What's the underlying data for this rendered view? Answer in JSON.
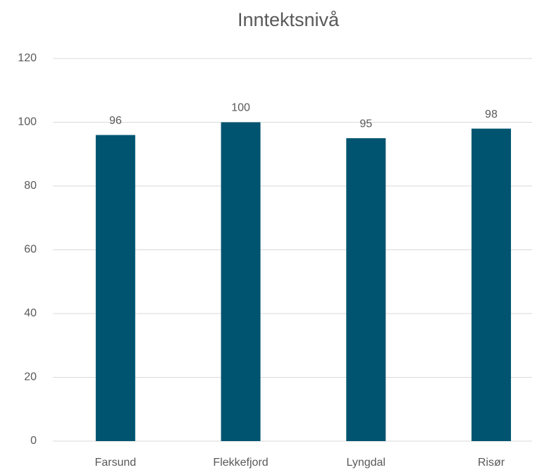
{
  "chart_data": {
    "type": "bar",
    "title": "Inntektsnivå",
    "categories": [
      "Farsund",
      "Flekkefjord",
      "Lyngdal",
      "Risør"
    ],
    "values": [
      96,
      100,
      95,
      98
    ],
    "color": "#005470",
    "ylim": [
      0,
      120
    ],
    "yticks": [
      0,
      20,
      40,
      60,
      80,
      100,
      120
    ],
    "grid": true
  }
}
